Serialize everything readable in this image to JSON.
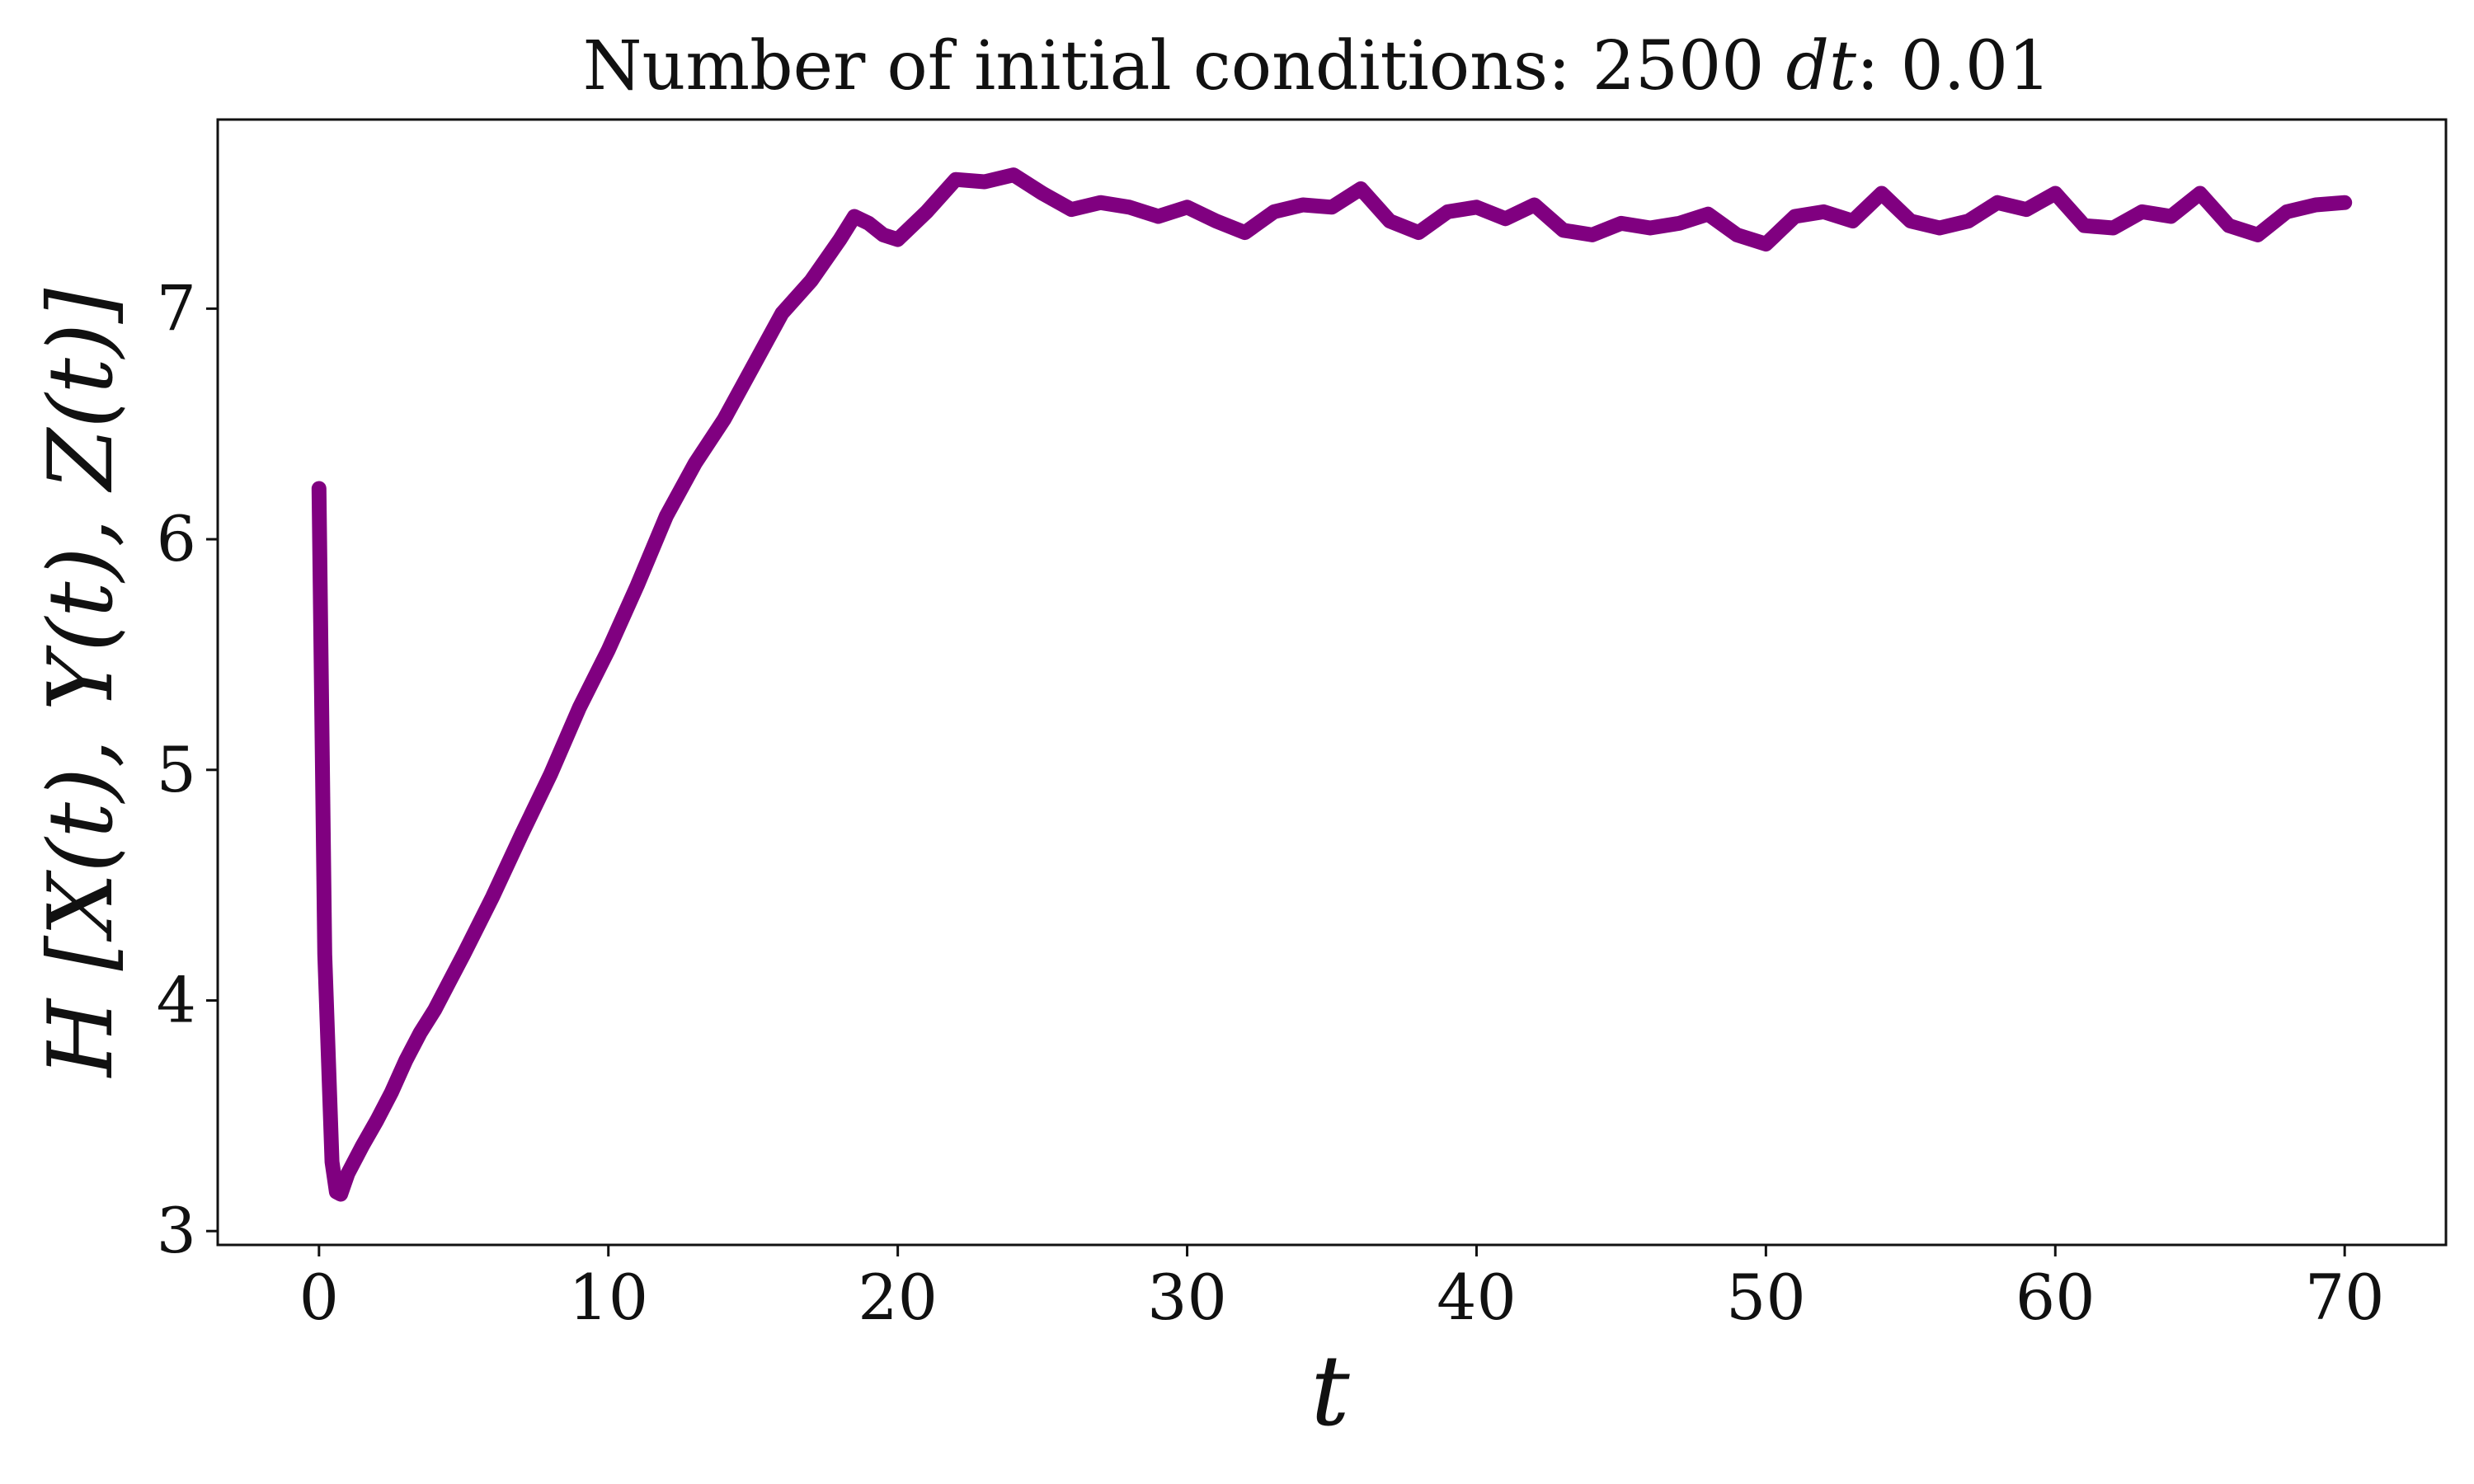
{
  "chart_data": {
    "type": "line",
    "title": "Number of initial conditions: 2500 dt: 0.01",
    "title_parts": {
      "prefix": "Number of initial conditions: 2500 ",
      "variable": "dt",
      "suffix": ": 0.01"
    },
    "xlabel": "t",
    "ylabel": "H [X(t), Y(t), Z(t)]",
    "xlim": [
      -3.5,
      73.5
    ],
    "ylim": [
      2.94,
      7.82
    ],
    "xticks": [
      0,
      10,
      20,
      30,
      40,
      50,
      60,
      70
    ],
    "yticks": [
      3,
      4,
      5,
      6,
      7
    ],
    "grid": false,
    "legend": "none",
    "line_color": "#800080",
    "series": [
      {
        "x": [
          0,
          0.2,
          0.45,
          0.6,
          0.75,
          1,
          1.5,
          2,
          2.5,
          3,
          3.5,
          4,
          4.5,
          5,
          6,
          7,
          8,
          9,
          10,
          11,
          12,
          13,
          14,
          15,
          16,
          17,
          18,
          18.5,
          19,
          19.5,
          20,
          21,
          22,
          23,
          24,
          25,
          26,
          27,
          28,
          29,
          30,
          31,
          32,
          33,
          34,
          35,
          36,
          37,
          38,
          39,
          40,
          41,
          42,
          43,
          44,
          45,
          46,
          47,
          48,
          49,
          50,
          51,
          52,
          53,
          54,
          55,
          56,
          57,
          58,
          59,
          60,
          61,
          62,
          63,
          64,
          65,
          66,
          67,
          68,
          69,
          70
        ],
        "y": [
          6.22,
          4.2,
          3.3,
          3.17,
          3.16,
          3.25,
          3.37,
          3.48,
          3.6,
          3.74,
          3.86,
          3.96,
          4.08,
          4.2,
          4.45,
          4.72,
          4.98,
          5.27,
          5.52,
          5.8,
          6.1,
          6.33,
          6.52,
          6.75,
          6.98,
          7.12,
          7.3,
          7.4,
          7.37,
          7.32,
          7.3,
          7.42,
          7.56,
          7.55,
          7.58,
          7.5,
          7.43,
          7.46,
          7.44,
          7.4,
          7.44,
          7.38,
          7.33,
          7.42,
          7.45,
          7.44,
          7.52,
          7.38,
          7.33,
          7.42,
          7.44,
          7.39,
          7.45,
          7.34,
          7.32,
          7.37,
          7.35,
          7.37,
          7.41,
          7.32,
          7.28,
          7.4,
          7.42,
          7.38,
          7.5,
          7.38,
          7.35,
          7.38,
          7.46,
          7.43,
          7.5,
          7.36,
          7.35,
          7.42,
          7.4,
          7.5,
          7.36,
          7.32,
          7.42,
          7.45,
          7.46
        ]
      }
    ]
  }
}
